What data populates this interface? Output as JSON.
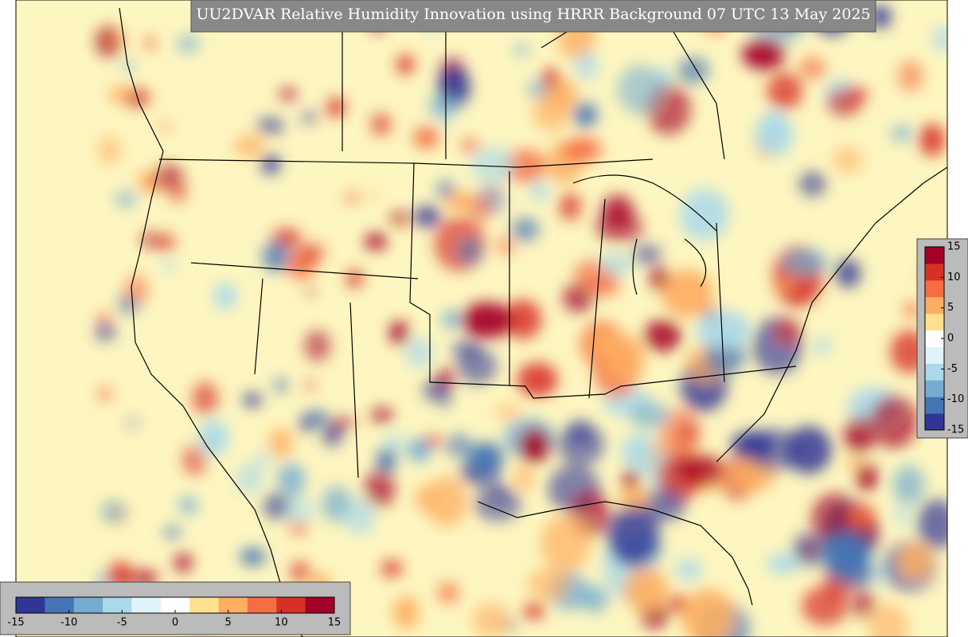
{
  "title": "UU2DVAR Relative Humidity Innovation using HRRR Background 07 UTC 13 May 2025",
  "colorbar_right": {
    "range": [
      -15,
      15
    ],
    "ticks": [
      15,
      10,
      5,
      0,
      -5,
      -10,
      -15
    ]
  },
  "colorbar_bottom": {
    "range": [
      -15,
      15
    ],
    "ticks": [
      -15,
      -10,
      -5,
      0,
      5,
      10,
      15
    ]
  },
  "colors": [
    "#313695",
    "#4575b4",
    "#74add1",
    "#abd9e9",
    "#e0f3f8",
    "#ffffff",
    "#fee090",
    "#fdae61",
    "#f46d43",
    "#d73027",
    "#a50026"
  ]
}
